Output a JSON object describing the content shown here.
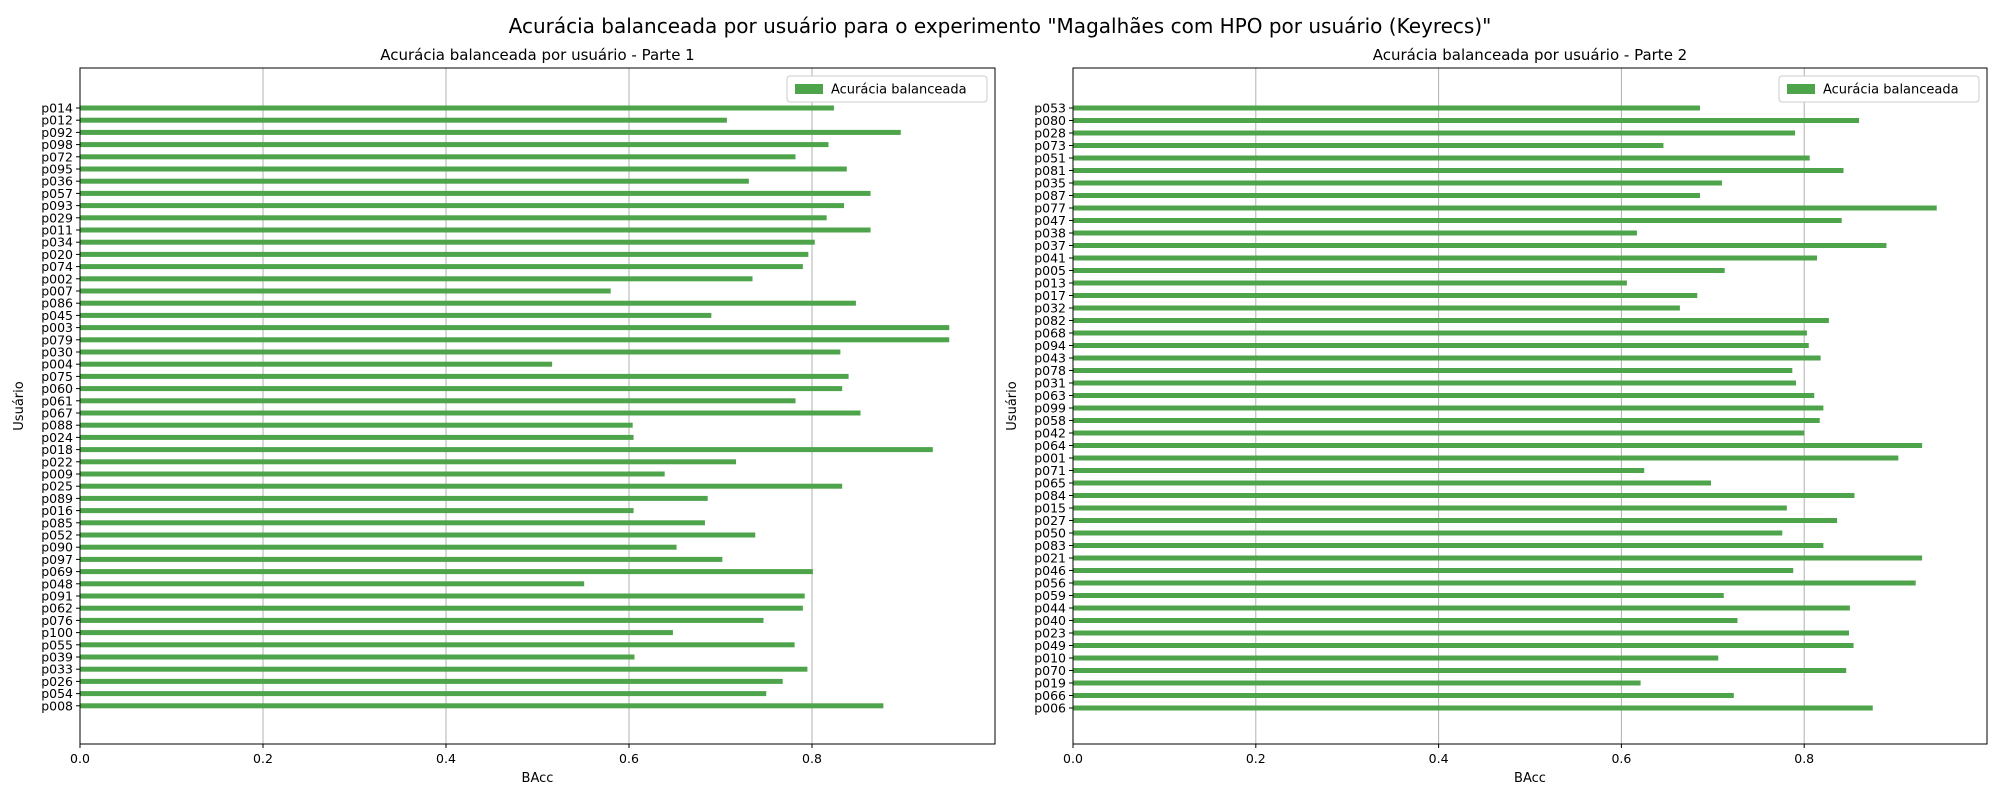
{
  "figure": {
    "suptitle": "Acurácia balanceada por usuário para o experimento \"Magalhães com HPO por usuário (Keyrecs)\""
  },
  "colors": {
    "bar": "#4ea44b",
    "grid": "#b0b0b0",
    "axis": "#000000"
  },
  "chart_data": [
    {
      "type": "bar",
      "orientation": "horizontal",
      "title": "Acurácia balanceada por usuário - Parte 1",
      "xlabel": "BAcc",
      "ylabel": "Usuário",
      "xlim": [
        0,
        1.0
      ],
      "xticks": [
        "0.0",
        "0.2",
        "0.4",
        "0.6",
        "0.8"
      ],
      "grid": "x",
      "legend": {
        "label": "Acurácia balanceada",
        "position": "top-right"
      },
      "categories": [
        "p014",
        "p012",
        "p092",
        "p098",
        "p072",
        "p095",
        "p036",
        "p057",
        "p093",
        "p029",
        "p011",
        "p034",
        "p020",
        "p074",
        "p002",
        "p007",
        "p086",
        "p045",
        "p003",
        "p079",
        "p030",
        "p004",
        "p075",
        "p060",
        "p061",
        "p067",
        "p088",
        "p024",
        "p018",
        "p022",
        "p009",
        "p025",
        "p089",
        "p016",
        "p085",
        "p052",
        "p090",
        "p097",
        "p069",
        "p048",
        "p091",
        "p062",
        "p076",
        "p100",
        "p055",
        "p039",
        "p033",
        "p026",
        "p054",
        "p008"
      ],
      "values": [
        0.824,
        0.707,
        0.897,
        0.818,
        0.782,
        0.838,
        0.731,
        0.864,
        0.835,
        0.816,
        0.864,
        0.803,
        0.796,
        0.79,
        0.735,
        0.58,
        0.848,
        0.69,
        0.95,
        0.95,
        0.831,
        0.516,
        0.84,
        0.833,
        0.782,
        0.853,
        0.604,
        0.605,
        0.932,
        0.717,
        0.639,
        0.833,
        0.686,
        0.605,
        0.683,
        0.738,
        0.652,
        0.702,
        0.801,
        0.551,
        0.792,
        0.79,
        0.747,
        0.648,
        0.781,
        0.606,
        0.795,
        0.768,
        0.75,
        0.878
      ]
    },
    {
      "type": "bar",
      "orientation": "horizontal",
      "title": "Acurácia balanceada por usuário - Parte 2",
      "xlabel": "BAcc",
      "ylabel": "Usuário",
      "xlim": [
        0,
        1.0
      ],
      "xticks": [
        "0.0",
        "0.2",
        "0.4",
        "0.6",
        "0.8"
      ],
      "grid": "x",
      "legend": {
        "label": "Acurácia balanceada",
        "position": "top-right"
      },
      "categories": [
        "p053",
        "p080",
        "p028",
        "p073",
        "p051",
        "p081",
        "p035",
        "p087",
        "p077",
        "p047",
        "p038",
        "p037",
        "p041",
        "p005",
        "p013",
        "p017",
        "p032",
        "p082",
        "p068",
        "p094",
        "p043",
        "p078",
        "p031",
        "p063",
        "p099",
        "p058",
        "p042",
        "p064",
        "p001",
        "p071",
        "p065",
        "p084",
        "p015",
        "p027",
        "p050",
        "p083",
        "p021",
        "p046",
        "p056",
        "p059",
        "p044",
        "p040",
        "p023",
        "p049",
        "p010",
        "p070",
        "p019",
        "p066",
        "p006"
      ],
      "values": [
        0.686,
        0.86,
        0.79,
        0.646,
        0.806,
        0.843,
        0.71,
        0.686,
        0.945,
        0.841,
        0.617,
        0.89,
        0.814,
        0.713,
        0.606,
        0.683,
        0.664,
        0.827,
        0.803,
        0.805,
        0.818,
        0.787,
        0.791,
        0.811,
        0.821,
        0.817,
        0.8,
        0.929,
        0.903,
        0.625,
        0.698,
        0.855,
        0.781,
        0.836,
        0.776,
        0.821,
        0.929,
        0.788,
        0.922,
        0.712,
        0.85,
        0.727,
        0.849,
        0.854,
        0.706,
        0.846,
        0.621,
        0.723,
        0.875
      ]
    }
  ]
}
